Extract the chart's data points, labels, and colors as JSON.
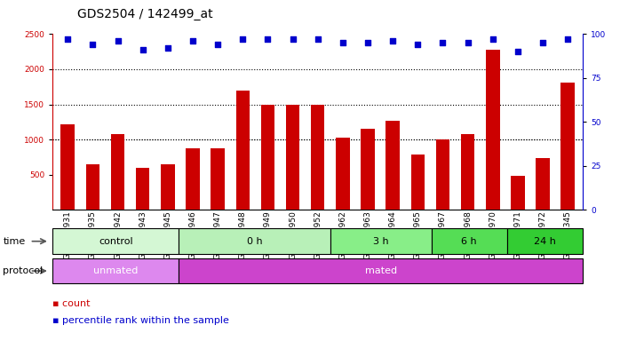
{
  "title": "GDS2504 / 142499_at",
  "samples": [
    "GSM112931",
    "GSM112935",
    "GSM112942",
    "GSM112943",
    "GSM112945",
    "GSM112946",
    "GSM112947",
    "GSM112948",
    "GSM112949",
    "GSM112950",
    "GSM112952",
    "GSM112962",
    "GSM112963",
    "GSM112964",
    "GSM112965",
    "GSM112967",
    "GSM112968",
    "GSM112970",
    "GSM112971",
    "GSM112972",
    "GSM113345"
  ],
  "counts": [
    1220,
    650,
    1080,
    600,
    650,
    870,
    870,
    1700,
    1500,
    1500,
    1500,
    1020,
    1150,
    1260,
    790,
    1000,
    1080,
    2280,
    480,
    730,
    1810
  ],
  "percentile_ranks": [
    97,
    94,
    96,
    91,
    92,
    96,
    94,
    97,
    97,
    97,
    97,
    95,
    95,
    96,
    94,
    95,
    95,
    97,
    90,
    95,
    97
  ],
  "bar_color": "#cc0000",
  "dot_color": "#0000cc",
  "ylim_left": [
    0,
    2500
  ],
  "ylim_right": [
    0,
    100
  ],
  "yticks_left": [
    500,
    1000,
    1500,
    2000,
    2500
  ],
  "yticks_right": [
    0,
    25,
    50,
    75,
    100
  ],
  "grid_values": [
    1000,
    1500,
    2000
  ],
  "time_groups": [
    {
      "label": "control",
      "start": 0,
      "end": 5,
      "color": "#d4f7d4"
    },
    {
      "label": "0 h",
      "start": 5,
      "end": 11,
      "color": "#b8f0b8"
    },
    {
      "label": "3 h",
      "start": 11,
      "end": 15,
      "color": "#88ee88"
    },
    {
      "label": "6 h",
      "start": 15,
      "end": 18,
      "color": "#55dd55"
    },
    {
      "label": "24 h",
      "start": 18,
      "end": 21,
      "color": "#33cc33"
    }
  ],
  "protocol_groups": [
    {
      "label": "unmated",
      "start": 0,
      "end": 5,
      "color": "#dd88ee"
    },
    {
      "label": "mated",
      "start": 5,
      "end": 21,
      "color": "#cc44cc"
    }
  ],
  "bg_color": "#ffffff",
  "plot_bg": "#ffffff",
  "dotted_grid_color": "#000000",
  "title_fontsize": 10,
  "tick_fontsize": 6.5,
  "label_fontsize": 8,
  "annot_fontsize": 8
}
